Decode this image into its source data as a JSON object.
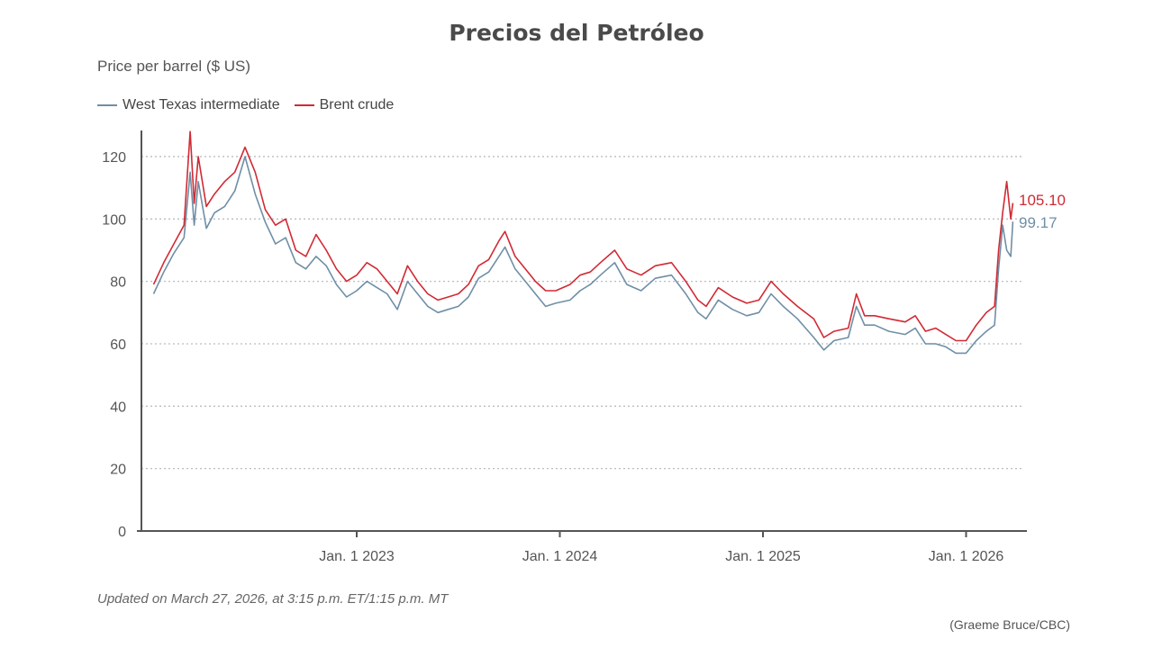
{
  "title": "Precios del Petróleo",
  "footnote": "Updated on March 27, 2026, at 3:15 p.m. ET/1:15 p.m. MT",
  "credit": "(Graeme Bruce/CBC)",
  "chart_data": {
    "type": "line",
    "title": "Precios del Petróleo",
    "ylabel": "Price per barrel ($ US)",
    "xlabel": "",
    "ylim": [
      0,
      128
    ],
    "xlim": [
      2021.98,
      2026.3
    ],
    "yticks": [
      0,
      20,
      40,
      60,
      80,
      100,
      120
    ],
    "xticks": [
      {
        "value": 2023.0,
        "label": "Jan. 1 2023"
      },
      {
        "value": 2024.0,
        "label": "Jan. 1 2024"
      },
      {
        "value": 2025.0,
        "label": "Jan. 1 2025"
      },
      {
        "value": 2026.0,
        "label": "Jan. 1 2026"
      }
    ],
    "grid": "horizontal dotted",
    "legend_position": "top-left",
    "x": [
      2022.0,
      2022.05,
      2022.1,
      2022.15,
      2022.18,
      2022.2,
      2022.22,
      2022.26,
      2022.3,
      2022.35,
      2022.4,
      2022.45,
      2022.5,
      2022.55,
      2022.6,
      2022.65,
      2022.7,
      2022.75,
      2022.8,
      2022.85,
      2022.9,
      2022.95,
      2023.0,
      2023.05,
      2023.1,
      2023.15,
      2023.2,
      2023.25,
      2023.3,
      2023.35,
      2023.4,
      2023.45,
      2023.5,
      2023.55,
      2023.6,
      2023.65,
      2023.7,
      2023.73,
      2023.78,
      2023.83,
      2023.88,
      2023.93,
      2023.98,
      2024.05,
      2024.1,
      2024.15,
      2024.2,
      2024.27,
      2024.33,
      2024.4,
      2024.47,
      2024.55,
      2024.62,
      2024.68,
      2024.72,
      2024.78,
      2024.85,
      2024.92,
      2024.98,
      2025.04,
      2025.1,
      2025.17,
      2025.25,
      2025.3,
      2025.35,
      2025.42,
      2025.46,
      2025.5,
      2025.55,
      2025.62,
      2025.7,
      2025.75,
      2025.8,
      2025.85,
      2025.9,
      2025.95,
      2026.0,
      2026.05,
      2026.1,
      2026.14,
      2026.16,
      2026.18,
      2026.2,
      2026.22,
      2026.23
    ],
    "series": [
      {
        "name": "West Texas intermediate",
        "color": "#6f8fa6",
        "end_label": "99.17",
        "values": [
          76,
          83,
          89,
          94,
          115,
          98,
          112,
          97,
          102,
          104,
          109,
          120,
          108,
          99,
          92,
          94,
          86,
          84,
          88,
          85,
          79,
          75,
          77,
          80,
          78,
          76,
          71,
          80,
          76,
          72,
          70,
          71,
          72,
          75,
          81,
          83,
          88,
          91,
          84,
          80,
          76,
          72,
          73,
          74,
          77,
          79,
          82,
          86,
          79,
          77,
          81,
          82,
          76,
          70,
          68,
          74,
          71,
          69,
          70,
          76,
          72,
          68,
          62,
          58,
          61,
          62,
          72,
          66,
          66,
          64,
          63,
          65,
          60,
          60,
          59,
          57,
          57,
          61,
          64,
          66,
          84,
          98,
          90,
          88,
          99.17
        ]
      },
      {
        "name": "Brent crude",
        "color": "#d12a34",
        "end_label": "105.10",
        "values": [
          79,
          86,
          92,
          98,
          128,
          105,
          120,
          104,
          108,
          112,
          115,
          123,
          115,
          103,
          98,
          100,
          90,
          88,
          95,
          90,
          84,
          80,
          82,
          86,
          84,
          80,
          76,
          85,
          80,
          76,
          74,
          75,
          76,
          79,
          85,
          87,
          93,
          96,
          88,
          84,
          80,
          77,
          77,
          79,
          82,
          83,
          86,
          90,
          84,
          82,
          85,
          86,
          80,
          74,
          72,
          78,
          75,
          73,
          74,
          80,
          76,
          72,
          68,
          62,
          64,
          65,
          76,
          69,
          69,
          68,
          67,
          69,
          64,
          65,
          63,
          61,
          61,
          66,
          70,
          72,
          90,
          102,
          112,
          100,
          105.1
        ]
      }
    ]
  }
}
